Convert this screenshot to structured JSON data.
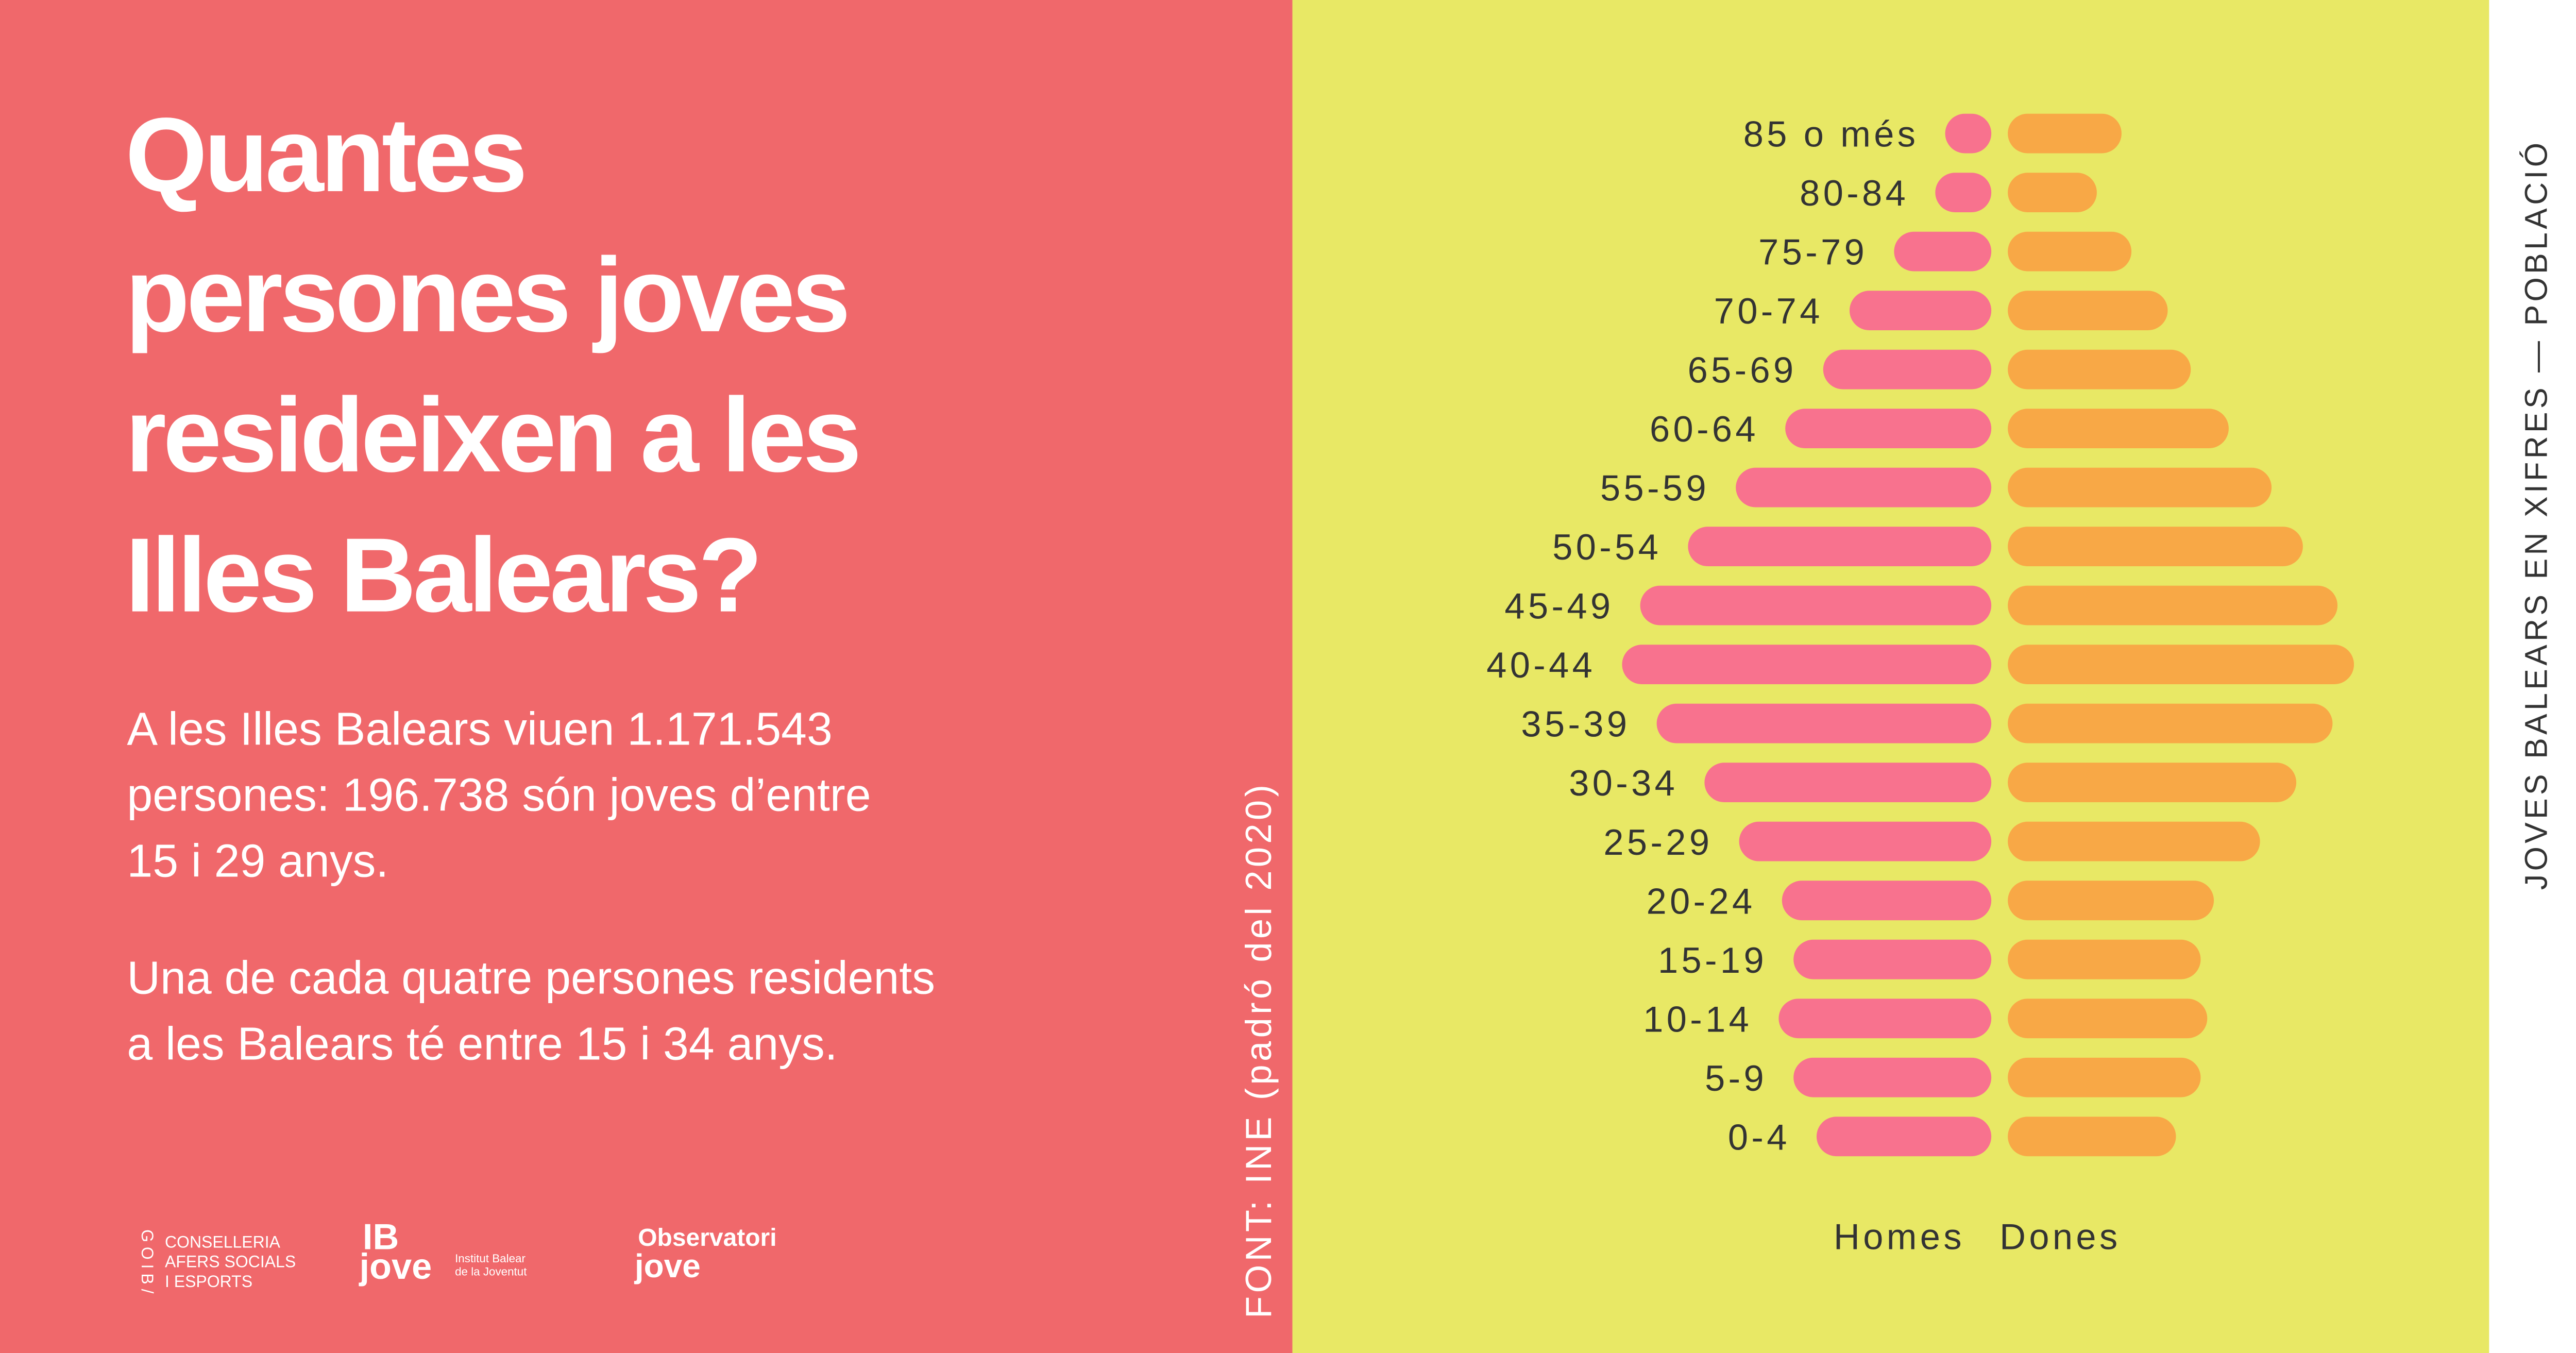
{
  "chart_data": {
    "type": "pyramid",
    "categories": [
      "85 o més",
      "80-84",
      "75-79",
      "70-74",
      "65-69",
      "60-64",
      "55-59",
      "50-54",
      "45-49",
      "40-44",
      "35-39",
      "30-34",
      "25-29",
      "20-24",
      "15-19",
      "10-14",
      "5-9",
      "0-4"
    ],
    "series": [
      {
        "name": "Homes",
        "color": "#f8728e",
        "values": [
          28,
          34,
          59,
          86,
          102,
          125,
          155,
          184,
          213,
          224,
          203,
          174,
          153,
          127,
          120,
          129,
          120,
          106
        ]
      },
      {
        "name": "Dones",
        "color": "#f8a846",
        "values": [
          69,
          54,
          75,
          97,
          111,
          134,
          160,
          179,
          200,
          210,
          197,
          175,
          153,
          125,
          117,
          121,
          117,
          102
        ]
      }
    ],
    "xlim": [
      0,
      240
    ]
  },
  "page": {
    "title_lines": [
      "Quantes",
      "persones joves",
      "resideixen a les",
      "Illes Balears?"
    ],
    "paragraph1": [
      "A les Illes Balears viuen 1.171.543",
      "persones: 196.738 són joves d’entre",
      "15 i 29 anys."
    ],
    "paragraph2": [
      "Una de cada quatre persones residents",
      "a les Balears té entre 15 i 34 anys."
    ],
    "source": "FONT: INE (padró del 2020)",
    "series_label": "JOVES BALEARS EN XIFRES — POBLACIÓ",
    "logo1": [
      "CONSELLERIA",
      "AFERS SOCIALS",
      "I ESPORTS"
    ],
    "logo1_vertical": "G O I B /",
    "logo2": [
      "IB",
      "jove",
      "Institut Balear",
      "de la Joventut"
    ],
    "logo3": [
      "Observatori",
      "jove"
    ]
  }
}
